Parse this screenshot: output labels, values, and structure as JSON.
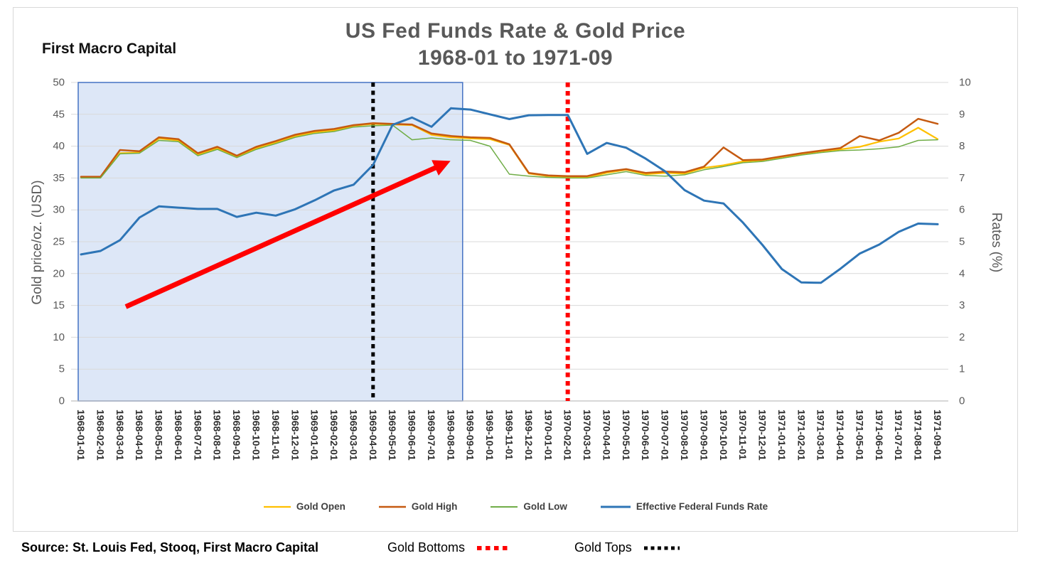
{
  "header": {
    "brand": "First Macro Capital",
    "title_line1": "US Fed Funds Rate & Gold Price",
    "title_line2": "1968-01 to 1971-09"
  },
  "chart_data": {
    "type": "line",
    "title": "US Fed Funds Rate & Gold Price 1968-01 to 1971-09",
    "grid": true,
    "legend_position": "bottom",
    "x": [
      "1968-01-01",
      "1968-02-01",
      "1968-03-01",
      "1968-04-01",
      "1968-05-01",
      "1968-06-01",
      "1968-07-01",
      "1968-08-01",
      "1968-09-01",
      "1968-10-01",
      "1968-11-01",
      "1968-12-01",
      "1969-01-01",
      "1969-02-01",
      "1969-03-01",
      "1969-04-01",
      "1969-05-01",
      "1969-06-01",
      "1969-07-01",
      "1969-08-01",
      "1969-09-01",
      "1969-10-01",
      "1969-11-01",
      "1969-12-01",
      "1970-01-01",
      "1970-02-01",
      "1970-03-01",
      "1970-04-01",
      "1970-05-01",
      "1970-06-01",
      "1970-07-01",
      "1970-08-01",
      "1970-09-01",
      "1970-10-01",
      "1970-11-01",
      "1970-12-01",
      "1971-01-01",
      "1971-02-01",
      "1971-03-01",
      "1971-04-01",
      "1971-05-01",
      "1971-06-01",
      "1971-07-01",
      "1971-08-01",
      "1971-09-01"
    ],
    "series": [
      {
        "name": "Gold Open",
        "axis": "left",
        "color": "#FFC000",
        "width": 2.25,
        "values": [
          35.1,
          35.1,
          38.9,
          39.0,
          41.2,
          40.9,
          38.7,
          39.7,
          38.3,
          39.7,
          40.6,
          41.6,
          42.2,
          42.5,
          43.2,
          43.5,
          43.4,
          43.3,
          41.8,
          41.4,
          41.2,
          41.1,
          40.2,
          35.7,
          35.3,
          35.2,
          35.1,
          35.8,
          36.3,
          35.6,
          35.8,
          35.7,
          36.6,
          37.0,
          37.6,
          37.8,
          38.3,
          38.8,
          39.2,
          39.5,
          39.9,
          40.7,
          41.2,
          42.9,
          41.1
        ]
      },
      {
        "name": "Gold High",
        "axis": "left",
        "color": "#C55A11",
        "width": 2.5,
        "values": [
          35.2,
          35.2,
          39.4,
          39.2,
          41.4,
          41.1,
          38.9,
          39.9,
          38.5,
          39.9,
          40.8,
          41.8,
          42.4,
          42.7,
          43.3,
          43.6,
          43.5,
          43.4,
          42.0,
          41.6,
          41.4,
          41.3,
          40.3,
          35.8,
          35.4,
          35.3,
          35.3,
          36.0,
          36.4,
          35.8,
          36.0,
          35.9,
          36.8,
          39.8,
          37.8,
          37.9,
          38.4,
          38.9,
          39.3,
          39.7,
          41.6,
          40.9,
          42.1,
          44.3,
          43.5
        ]
      },
      {
        "name": "Gold Low",
        "axis": "left",
        "color": "#70AD47",
        "width": 1.5,
        "values": [
          35.0,
          35.0,
          38.8,
          38.9,
          40.9,
          40.7,
          38.5,
          39.5,
          38.2,
          39.5,
          40.4,
          41.4,
          42.0,
          42.3,
          43.0,
          43.2,
          43.3,
          41.0,
          41.3,
          41.0,
          40.9,
          40.0,
          35.6,
          35.3,
          35.1,
          35.0,
          35.0,
          35.5,
          36.0,
          35.4,
          35.3,
          35.5,
          36.3,
          36.8,
          37.4,
          37.6,
          38.1,
          38.6,
          39.0,
          39.3,
          39.4,
          39.6,
          39.9,
          40.9,
          41.0
        ]
      },
      {
        "name": "Effective Federal Funds Rate",
        "axis": "right",
        "color": "#2E75B6",
        "width": 3,
        "values": [
          4.6,
          4.71,
          5.05,
          5.76,
          6.11,
          6.07,
          6.03,
          6.03,
          5.78,
          5.91,
          5.82,
          6.02,
          6.3,
          6.61,
          6.79,
          7.41,
          8.67,
          8.9,
          8.61,
          9.19,
          9.15,
          9.0,
          8.85,
          8.97,
          8.98,
          8.98,
          7.76,
          8.1,
          7.95,
          7.61,
          7.21,
          6.62,
          6.29,
          6.2,
          5.6,
          4.9,
          4.14,
          3.72,
          3.71,
          4.15,
          4.63,
          4.91,
          5.31,
          5.57,
          5.55
        ]
      }
    ],
    "left_axis": {
      "label": "Gold price/oz. (USD)",
      "min": 0,
      "max": 50,
      "step": 5,
      "ticks": [
        0,
        5,
        10,
        15,
        20,
        25,
        30,
        35,
        40,
        45,
        50
      ]
    },
    "right_axis": {
      "label": "Rates (%)",
      "min": 0,
      "max": 10,
      "step": 1,
      "ticks": [
        0,
        1,
        2,
        3,
        4,
        5,
        6,
        7,
        8,
        9,
        10
      ]
    },
    "annotations": {
      "shaded_region": {
        "x_start": "1968-01-01",
        "x_end_index": 19.6,
        "fill": "#dde7f7",
        "border": "#4472c4"
      },
      "black_dotted_line_x": "1969-04-01",
      "red_dotted_line_x": "1970-02-01",
      "red_arrow": {
        "color": "#FF0000",
        "from": {
          "x_index": 2.3,
          "y": 14.8
        },
        "to": {
          "x_index": 18.7,
          "y": 37.3
        }
      },
      "grid_color": "#d9d9d9"
    }
  },
  "footer": {
    "source": "Source: St. Louis Fed, Stooq, First Macro Capital",
    "gold_bottoms_label": "Gold Bottoms",
    "gold_tops_label": "Gold Tops",
    "bottoms_color": "#FF0000",
    "tops_color": "#000000"
  }
}
